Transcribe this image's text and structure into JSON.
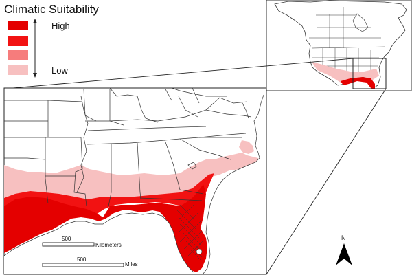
{
  "legend": {
    "title": "Climatic Suitability",
    "high_label": "High",
    "low_label": "Low",
    "swatches": [
      {
        "color": "#e40000"
      },
      {
        "color": "#f21212"
      },
      {
        "color": "#f67c7c"
      },
      {
        "color": "#f7c0c0"
      }
    ]
  },
  "scalebars": [
    {
      "value": "500",
      "unit": "Kilometers"
    },
    {
      "value": "500",
      "unit": "Miles"
    }
  ],
  "north_arrow": {
    "label": "N"
  },
  "colors": {
    "high": "#e40000",
    "medium_high": "#f21212",
    "medium_low": "#f67c7c",
    "low": "#f7c0c0",
    "boundary": "#333333"
  }
}
